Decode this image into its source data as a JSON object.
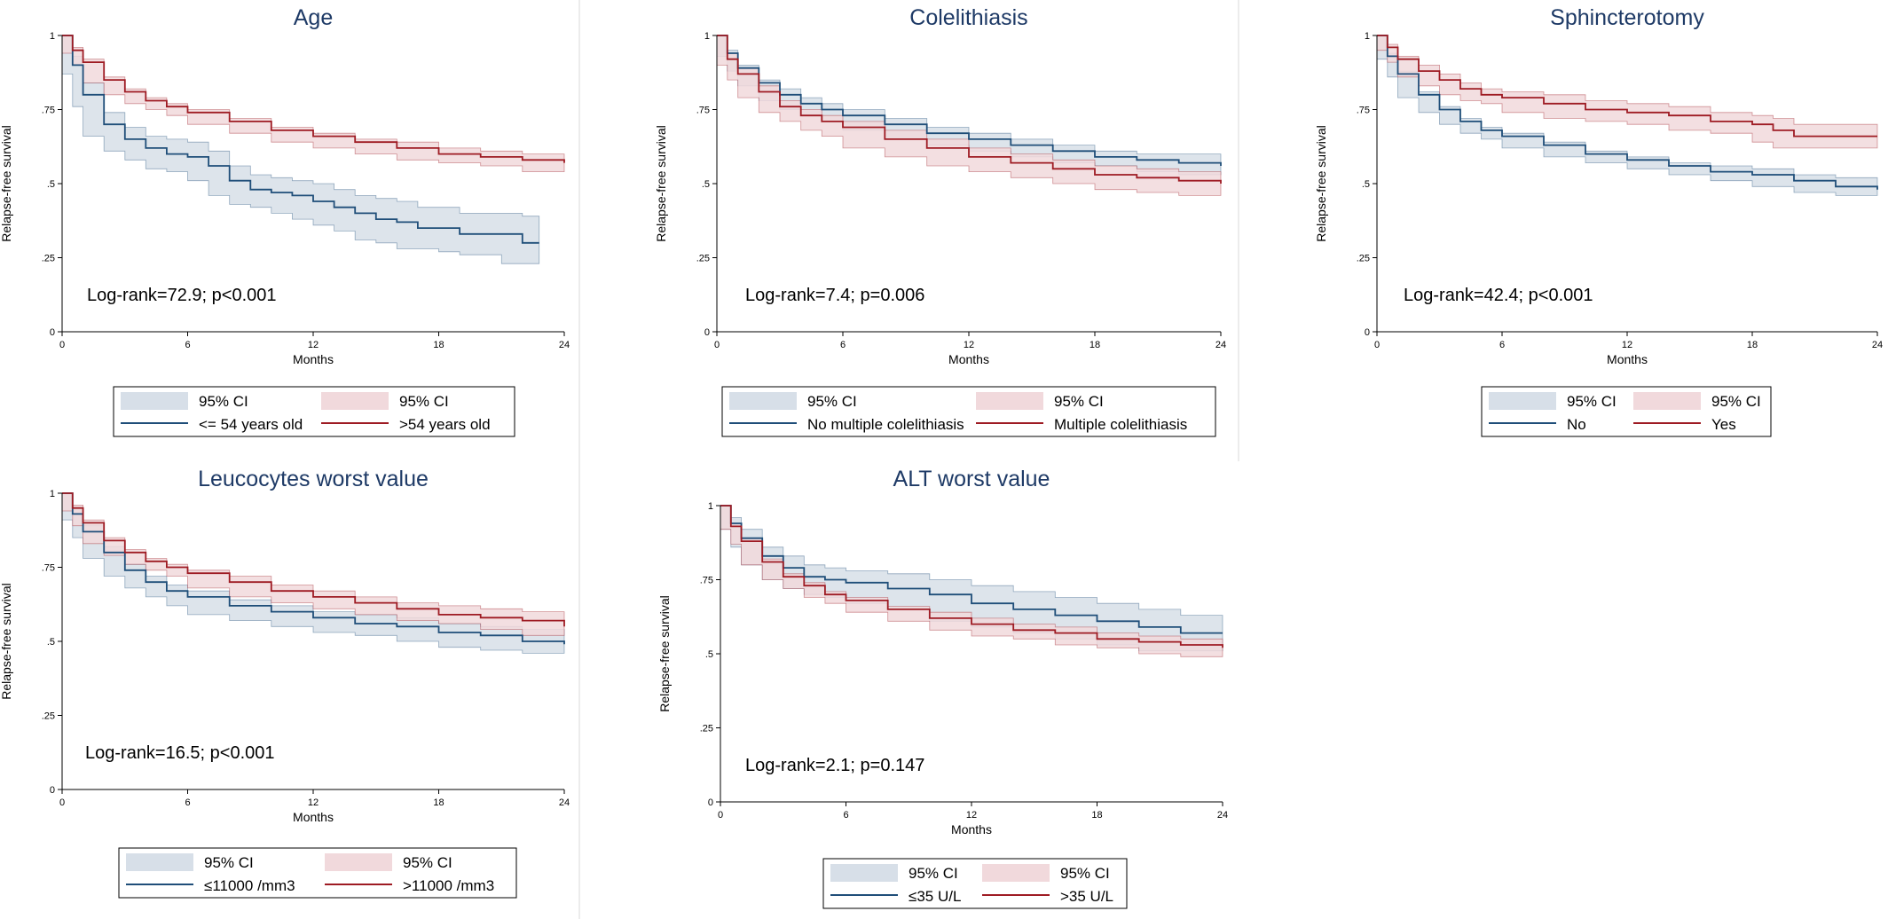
{
  "figure": {
    "colors": {
      "group1_line": "#1f4e79",
      "group1_band": "#d7dfe8",
      "group2_line": "#9e1b23",
      "group2_band": "#f1d9dc",
      "title": "#1e3a66"
    }
  },
  "chart_data": [
    {
      "type": "line",
      "title": "Age",
      "xlabel": "Months",
      "ylabel": "Relapse-free survival",
      "xlim": [
        0,
        24
      ],
      "ylim": [
        0,
        1
      ],
      "xticks": [
        "0",
        "6",
        "12",
        "18",
        "24"
      ],
      "yticks": [
        "0",
        ".25",
        ".5",
        ".75",
        "1"
      ],
      "annotation": "Log-rank=72.9; p<0.001",
      "legend": {
        "position": "bottom",
        "entries": [
          "95% CI",
          "95% CI",
          "<= 54 years old",
          ">54 years old"
        ]
      },
      "series": [
        {
          "name": "<= 54 years old",
          "x": [
            0,
            0.5,
            1,
            2,
            3,
            4,
            5,
            6,
            7,
            8,
            9,
            10,
            11,
            12,
            13,
            14,
            15,
            16,
            17,
            18,
            19,
            20,
            21,
            22,
            22.8
          ],
          "y": [
            1,
            0.9,
            0.8,
            0.7,
            0.65,
            0.62,
            0.6,
            0.59,
            0.56,
            0.51,
            0.48,
            0.47,
            0.46,
            0.44,
            0.42,
            0.4,
            0.38,
            0.37,
            0.35,
            0.35,
            0.33,
            0.33,
            0.33,
            0.3,
            0.3
          ],
          "lower": [
            1,
            0.87,
            0.76,
            0.66,
            0.61,
            0.58,
            0.55,
            0.54,
            0.51,
            0.46,
            0.43,
            0.42,
            0.4,
            0.38,
            0.36,
            0.34,
            0.31,
            0.3,
            0.28,
            0.28,
            0.27,
            0.26,
            0.26,
            0.23,
            0.23
          ],
          "upper": [
            1,
            0.93,
            0.84,
            0.74,
            0.69,
            0.66,
            0.65,
            0.64,
            0.61,
            0.56,
            0.53,
            0.52,
            0.51,
            0.5,
            0.48,
            0.46,
            0.45,
            0.44,
            0.42,
            0.42,
            0.4,
            0.4,
            0.4,
            0.39,
            0.39
          ]
        },
        {
          "name": ">54 years old",
          "x": [
            0,
            0.5,
            1,
            2,
            3,
            4,
            5,
            6,
            8,
            10,
            12,
            14,
            16,
            18,
            20,
            22,
            24
          ],
          "y": [
            1,
            0.95,
            0.91,
            0.85,
            0.81,
            0.78,
            0.76,
            0.74,
            0.71,
            0.68,
            0.66,
            0.64,
            0.62,
            0.6,
            0.59,
            0.58,
            0.57
          ],
          "lower": [
            1,
            0.94,
            0.9,
            0.84,
            0.8,
            0.77,
            0.75,
            0.73,
            0.7,
            0.67,
            0.64,
            0.62,
            0.6,
            0.58,
            0.57,
            0.56,
            0.54
          ],
          "upper": [
            1,
            0.96,
            0.92,
            0.86,
            0.82,
            0.79,
            0.77,
            0.75,
            0.72,
            0.69,
            0.67,
            0.65,
            0.64,
            0.62,
            0.61,
            0.6,
            0.59
          ]
        }
      ]
    },
    {
      "type": "line",
      "title": "Colelithiasis",
      "xlabel": "Months",
      "ylabel": "Relapse-free survival",
      "xlim": [
        0,
        24
      ],
      "ylim": [
        0,
        1
      ],
      "xticks": [
        "0",
        "6",
        "12",
        "18",
        "24"
      ],
      "yticks": [
        "0",
        ".25",
        ".5",
        ".75",
        "1"
      ],
      "annotation": "Log-rank=7.4; p=0.006",
      "legend": {
        "position": "bottom",
        "entries": [
          "95% CI",
          "95% CI",
          "No multiple colelithiasis",
          "Multiple colelithiasis"
        ]
      },
      "series": [
        {
          "name": "No multiple colelithiasis",
          "x": [
            0,
            0.5,
            1,
            2,
            3,
            4,
            5,
            6,
            8,
            10,
            12,
            14,
            16,
            18,
            20,
            22,
            24
          ],
          "y": [
            1,
            0.94,
            0.89,
            0.84,
            0.8,
            0.77,
            0.75,
            0.73,
            0.7,
            0.67,
            0.65,
            0.63,
            0.61,
            0.59,
            0.58,
            0.57,
            0.56
          ],
          "lower": [
            1,
            0.93,
            0.88,
            0.83,
            0.78,
            0.75,
            0.73,
            0.71,
            0.68,
            0.65,
            0.63,
            0.61,
            0.59,
            0.57,
            0.56,
            0.54,
            0.53
          ],
          "upper": [
            1,
            0.95,
            0.9,
            0.85,
            0.82,
            0.79,
            0.77,
            0.75,
            0.72,
            0.69,
            0.67,
            0.65,
            0.63,
            0.61,
            0.6,
            0.6,
            0.59
          ]
        },
        {
          "name": "Multiple colelithiasis",
          "x": [
            0,
            0.5,
            1,
            2,
            3,
            4,
            5,
            6,
            8,
            10,
            12,
            14,
            16,
            18,
            20,
            22,
            24
          ],
          "y": [
            1,
            0.92,
            0.87,
            0.81,
            0.76,
            0.73,
            0.71,
            0.69,
            0.65,
            0.62,
            0.59,
            0.57,
            0.55,
            0.53,
            0.52,
            0.51,
            0.5
          ],
          "lower": [
            1,
            0.9,
            0.85,
            0.79,
            0.74,
            0.71,
            0.68,
            0.66,
            0.62,
            0.59,
            0.56,
            0.54,
            0.52,
            0.5,
            0.48,
            0.47,
            0.46
          ],
          "upper": [
            1,
            0.94,
            0.89,
            0.83,
            0.78,
            0.75,
            0.73,
            0.71,
            0.68,
            0.65,
            0.62,
            0.6,
            0.58,
            0.56,
            0.55,
            0.54,
            0.54
          ]
        }
      ]
    },
    {
      "type": "line",
      "title": "Sphincterotomy",
      "xlabel": "Months",
      "ylabel": "Relapse-free survival",
      "xlim": [
        0,
        24
      ],
      "ylim": [
        0,
        1
      ],
      "xticks": [
        "0",
        "6",
        "12",
        "18",
        "24"
      ],
      "yticks": [
        "0",
        ".25",
        ".5",
        ".75",
        "1"
      ],
      "annotation": "Log-rank=42.4; p<0.001",
      "legend": {
        "position": "bottom",
        "entries": [
          "95% CI",
          "95% CI",
          "No",
          "Yes"
        ]
      },
      "series": [
        {
          "name": "No",
          "x": [
            0,
            0.5,
            1,
            2,
            3,
            4,
            5,
            6,
            8,
            10,
            12,
            14,
            16,
            18,
            20,
            22,
            24
          ],
          "y": [
            1,
            0.93,
            0.87,
            0.8,
            0.75,
            0.71,
            0.68,
            0.66,
            0.63,
            0.6,
            0.58,
            0.56,
            0.54,
            0.53,
            0.51,
            0.49,
            0.48
          ],
          "lower": [
            1,
            0.92,
            0.86,
            0.79,
            0.74,
            0.7,
            0.67,
            0.65,
            0.62,
            0.59,
            0.57,
            0.55,
            0.53,
            0.51,
            0.49,
            0.47,
            0.46
          ],
          "upper": [
            1,
            0.94,
            0.88,
            0.81,
            0.76,
            0.72,
            0.69,
            0.67,
            0.64,
            0.61,
            0.59,
            0.57,
            0.56,
            0.55,
            0.53,
            0.52,
            0.51
          ]
        },
        {
          "name": "Yes",
          "x": [
            0,
            0.5,
            1,
            2,
            3,
            4,
            5,
            6,
            8,
            10,
            12,
            14,
            16,
            18,
            19,
            20,
            22,
            24
          ],
          "y": [
            1,
            0.96,
            0.92,
            0.88,
            0.85,
            0.82,
            0.8,
            0.79,
            0.77,
            0.75,
            0.74,
            0.73,
            0.71,
            0.7,
            0.68,
            0.66,
            0.66,
            0.66
          ],
          "lower": [
            1,
            0.95,
            0.91,
            0.86,
            0.83,
            0.8,
            0.78,
            0.77,
            0.74,
            0.72,
            0.71,
            0.7,
            0.68,
            0.67,
            0.64,
            0.62,
            0.62,
            0.62
          ],
          "upper": [
            1,
            0.97,
            0.93,
            0.9,
            0.87,
            0.84,
            0.82,
            0.81,
            0.8,
            0.78,
            0.77,
            0.76,
            0.74,
            0.73,
            0.72,
            0.7,
            0.7,
            0.7
          ]
        }
      ]
    },
    {
      "type": "line",
      "title": "Leucocytes worst value",
      "xlabel": "Months",
      "ylabel": "Relapse-free survival",
      "xlim": [
        0,
        24
      ],
      "ylim": [
        0,
        1
      ],
      "xticks": [
        "0",
        "6",
        "12",
        "18",
        "24"
      ],
      "yticks": [
        "0",
        ".25",
        ".5",
        ".75",
        "1"
      ],
      "annotation": "Log-rank=16.5; p<0.001",
      "legend": {
        "position": "bottom",
        "entries": [
          "95% CI",
          "95% CI",
          "≤11000 /mm3",
          ">11000 /mm3"
        ]
      },
      "series": [
        {
          "name": "≤11000 /mm3",
          "x": [
            0,
            0.5,
            1,
            2,
            3,
            4,
            5,
            6,
            8,
            10,
            12,
            14,
            16,
            18,
            20,
            22,
            24
          ],
          "y": [
            1,
            0.93,
            0.87,
            0.8,
            0.74,
            0.7,
            0.67,
            0.65,
            0.62,
            0.6,
            0.58,
            0.56,
            0.55,
            0.53,
            0.52,
            0.5,
            0.49
          ],
          "lower": [
            1,
            0.91,
            0.85,
            0.78,
            0.72,
            0.68,
            0.65,
            0.62,
            0.59,
            0.57,
            0.55,
            0.53,
            0.52,
            0.5,
            0.48,
            0.47,
            0.46
          ],
          "upper": [
            1,
            0.95,
            0.89,
            0.82,
            0.76,
            0.72,
            0.69,
            0.67,
            0.64,
            0.62,
            0.6,
            0.59,
            0.58,
            0.56,
            0.55,
            0.54,
            0.53
          ]
        },
        {
          "name": ">11000 /mm3",
          "x": [
            0,
            0.5,
            1,
            2,
            3,
            4,
            5,
            6,
            8,
            10,
            12,
            14,
            16,
            18,
            20,
            22,
            24
          ],
          "y": [
            1,
            0.95,
            0.9,
            0.84,
            0.8,
            0.77,
            0.75,
            0.73,
            0.7,
            0.67,
            0.65,
            0.63,
            0.61,
            0.59,
            0.58,
            0.57,
            0.55
          ],
          "lower": [
            1,
            0.94,
            0.89,
            0.83,
            0.79,
            0.76,
            0.74,
            0.72,
            0.68,
            0.65,
            0.63,
            0.61,
            0.59,
            0.57,
            0.56,
            0.54,
            0.52
          ],
          "upper": [
            1,
            0.96,
            0.91,
            0.85,
            0.81,
            0.78,
            0.76,
            0.74,
            0.72,
            0.69,
            0.67,
            0.65,
            0.63,
            0.62,
            0.61,
            0.6,
            0.59
          ]
        }
      ]
    },
    {
      "type": "line",
      "title": "ALT worst value",
      "xlabel": "Months",
      "ylabel": "Relapse-free survival",
      "xlim": [
        0,
        24
      ],
      "ylim": [
        0,
        1
      ],
      "xticks": [
        "0",
        "6",
        "12",
        "18",
        "24"
      ],
      "yticks": [
        "0",
        ".25",
        ".5",
        ".75",
        "1"
      ],
      "annotation": "Log-rank=2.1; p=0.147",
      "legend": {
        "position": "bottom",
        "entries": [
          "95% CI",
          "95% CI",
          "≤35 U/L",
          ">35 U/L"
        ]
      },
      "series": [
        {
          "name": "≤35 U/L",
          "x": [
            0,
            0.5,
            1,
            2,
            3,
            4,
            5,
            6,
            8,
            10,
            12,
            14,
            16,
            18,
            20,
            22,
            24
          ],
          "y": [
            1,
            0.94,
            0.89,
            0.83,
            0.79,
            0.76,
            0.75,
            0.74,
            0.72,
            0.7,
            0.67,
            0.65,
            0.63,
            0.61,
            0.59,
            0.57,
            0.57
          ],
          "lower": [
            1,
            0.92,
            0.86,
            0.8,
            0.75,
            0.72,
            0.7,
            0.69,
            0.67,
            0.65,
            0.61,
            0.59,
            0.57,
            0.55,
            0.53,
            0.51,
            0.51
          ],
          "upper": [
            1,
            0.96,
            0.92,
            0.86,
            0.83,
            0.8,
            0.79,
            0.78,
            0.77,
            0.75,
            0.73,
            0.71,
            0.69,
            0.67,
            0.65,
            0.63,
            0.63
          ]
        },
        {
          "name": ">35 U/L",
          "x": [
            0,
            0.5,
            1,
            2,
            3,
            4,
            5,
            6,
            8,
            10,
            12,
            14,
            16,
            18,
            20,
            22,
            24
          ],
          "y": [
            1,
            0.93,
            0.88,
            0.81,
            0.76,
            0.73,
            0.7,
            0.68,
            0.65,
            0.62,
            0.6,
            0.58,
            0.57,
            0.55,
            0.54,
            0.53,
            0.52
          ],
          "lower": [
            1,
            0.92,
            0.87,
            0.8,
            0.75,
            0.72,
            0.69,
            0.67,
            0.64,
            0.61,
            0.58,
            0.56,
            0.55,
            0.53,
            0.52,
            0.5,
            0.49
          ],
          "upper": [
            1,
            0.94,
            0.89,
            0.82,
            0.77,
            0.74,
            0.71,
            0.69,
            0.66,
            0.64,
            0.62,
            0.6,
            0.59,
            0.57,
            0.56,
            0.55,
            0.55
          ]
        }
      ]
    }
  ]
}
